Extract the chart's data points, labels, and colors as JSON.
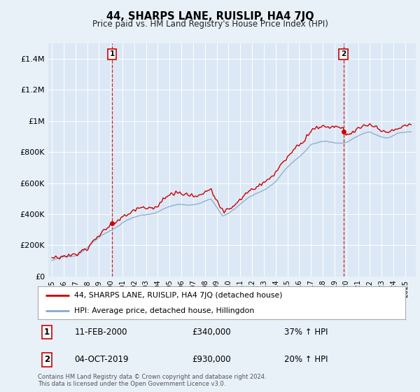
{
  "title": "44, SHARPS LANE, RUISLIP, HA4 7JQ",
  "subtitle": "Price paid vs. HM Land Registry's House Price Index (HPI)",
  "bg_color": "#e8f0f8",
  "plot_bg_color": "#dce8f5",
  "sale1_year": 2000.11,
  "sale1_price": 340000,
  "sale2_year": 2019.75,
  "sale2_price": 930000,
  "legend_line1": "44, SHARPS LANE, RUISLIP, HA4 7JQ (detached house)",
  "legend_line2": "HPI: Average price, detached house, Hillingdon",
  "annotation1_date": "11-FEB-2000",
  "annotation1_price": "£340,000",
  "annotation1_hpi": "37% ↑ HPI",
  "annotation2_date": "04-OCT-2019",
  "annotation2_price": "£930,000",
  "annotation2_hpi": "20% ↑ HPI",
  "footer": "Contains HM Land Registry data © Crown copyright and database right 2024.\nThis data is licensed under the Open Government Licence v3.0.",
  "ylim_min": 0,
  "ylim_max": 1500000,
  "red_color": "#cc0000",
  "blue_color": "#88aacc",
  "dashed_color": "#cc0000"
}
